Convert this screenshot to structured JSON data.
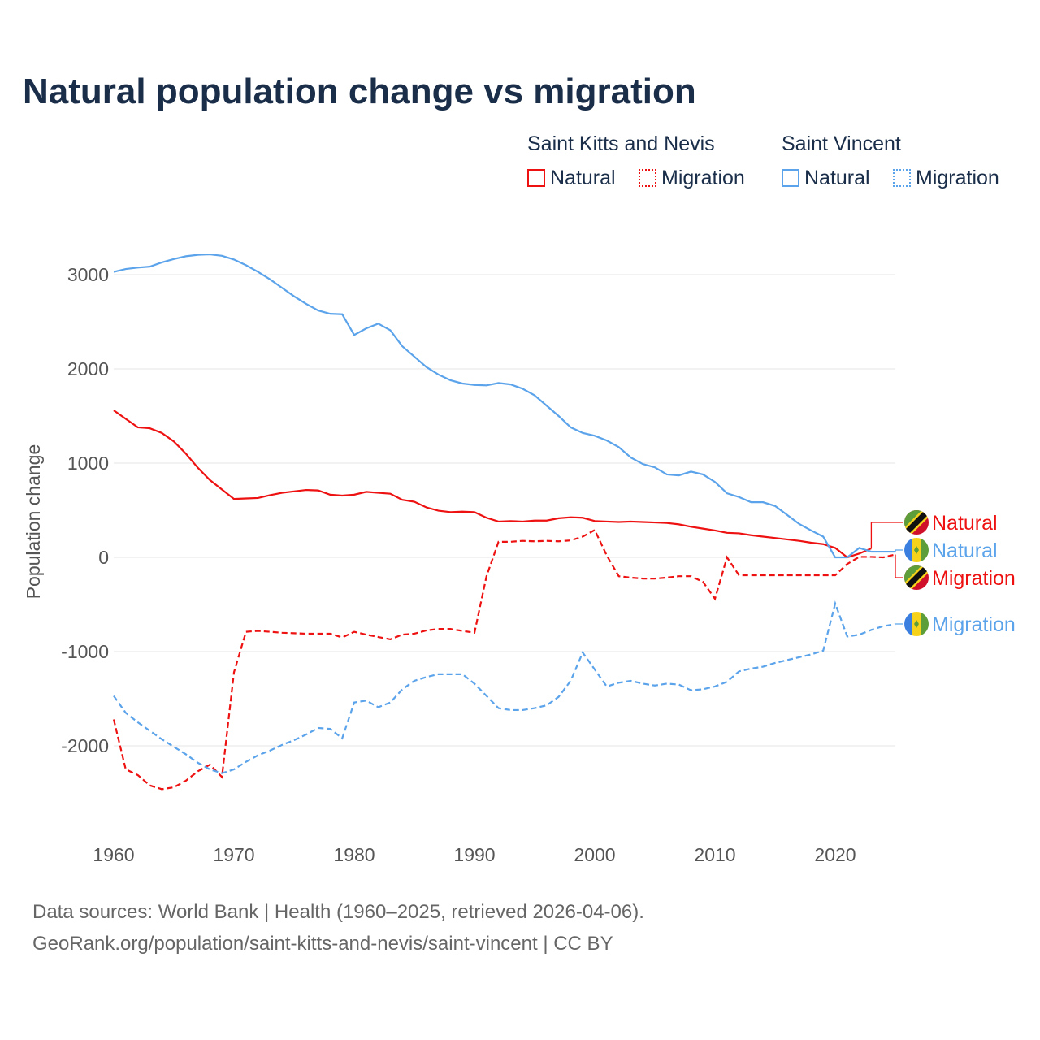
{
  "chart_data": {
    "type": "line",
    "title": "Natural population change vs migration",
    "xlabel": "",
    "ylabel": "Population change",
    "xlim": [
      1960,
      2025
    ],
    "ylim": [
      -2600,
      3300
    ],
    "xticks": [
      1960,
      1970,
      1980,
      1990,
      2000,
      2010,
      2020
    ],
    "yticks": [
      -2000,
      -1000,
      0,
      1000,
      2000,
      3000
    ],
    "grid": true,
    "legend": {
      "groups": [
        {
          "title": "Saint Kitts and Nevis",
          "items": [
            "Natural",
            "Migration"
          ]
        },
        {
          "title": "Saint Vincent",
          "items": [
            "Natural",
            "Migration"
          ]
        }
      ],
      "placement": "top-right"
    },
    "series": [
      {
        "name": "Saint Kitts and Nevis Natural",
        "label": "Natural",
        "color": "#ee1111",
        "dash": false,
        "start": 1960,
        "values": [
          1560,
          1470,
          1380,
          1370,
          1320,
          1230,
          1100,
          950,
          820,
          720,
          620,
          625,
          630,
          660,
          685,
          700,
          715,
          710,
          665,
          655,
          665,
          695,
          685,
          675,
          610,
          590,
          530,
          495,
          480,
          485,
          480,
          420,
          380,
          385,
          380,
          390,
          390,
          415,
          425,
          420,
          385,
          380,
          375,
          380,
          375,
          370,
          365,
          350,
          325,
          305,
          285,
          260,
          255,
          235,
          220,
          205,
          190,
          175,
          155,
          140,
          100,
          0,
          40,
          95
        ]
      },
      {
        "name": "Saint Kitts and Nevis Migration",
        "label": "Migration",
        "color": "#ee1111",
        "dash": true,
        "start": 1960,
        "values": [
          -1720,
          -2250,
          -2310,
          -2420,
          -2460,
          -2440,
          -2370,
          -2270,
          -2200,
          -2330,
          -1220,
          -790,
          -780,
          -790,
          -800,
          -805,
          -810,
          -810,
          -810,
          -850,
          -790,
          -820,
          -845,
          -870,
          -820,
          -810,
          -775,
          -760,
          -760,
          -780,
          -800,
          -200,
          165,
          165,
          175,
          170,
          175,
          170,
          180,
          220,
          290,
          20,
          -200,
          -215,
          -225,
          -225,
          -215,
          -200,
          -200,
          -260,
          -440,
          0,
          -190,
          -190,
          -190,
          -190,
          -190,
          -190,
          -190,
          -190,
          -190,
          -70,
          5,
          5,
          0,
          30
        ]
      },
      {
        "name": "Saint Vincent Natural",
        "label": "Natural",
        "color": "#5ba3ea",
        "dash": false,
        "start": 1960,
        "values": [
          3030,
          3060,
          3075,
          3085,
          3130,
          3165,
          3195,
          3210,
          3215,
          3200,
          3160,
          3100,
          3030,
          2950,
          2860,
          2770,
          2690,
          2620,
          2585,
          2580,
          2360,
          2430,
          2480,
          2410,
          2240,
          2130,
          2020,
          1940,
          1880,
          1845,
          1830,
          1825,
          1850,
          1835,
          1790,
          1720,
          1610,
          1500,
          1380,
          1320,
          1290,
          1240,
          1170,
          1060,
          990,
          955,
          880,
          870,
          910,
          880,
          800,
          680,
          640,
          585,
          585,
          545,
          450,
          355,
          285,
          220,
          0,
          0,
          100,
          60,
          60,
          60
        ]
      },
      {
        "name": "Saint Vincent Migration",
        "label": "Migration",
        "color": "#5ba3ea",
        "dash": true,
        "start": 1960,
        "values": [
          -1470,
          -1650,
          -1750,
          -1840,
          -1930,
          -2010,
          -2090,
          -2180,
          -2250,
          -2290,
          -2250,
          -2170,
          -2100,
          -2050,
          -1990,
          -1940,
          -1880,
          -1810,
          -1820,
          -1920,
          -1540,
          -1520,
          -1590,
          -1540,
          -1400,
          -1310,
          -1270,
          -1240,
          -1240,
          -1240,
          -1340,
          -1470,
          -1600,
          -1620,
          -1620,
          -1600,
          -1570,
          -1480,
          -1310,
          -1010,
          -1190,
          -1370,
          -1330,
          -1310,
          -1340,
          -1360,
          -1340,
          -1350,
          -1410,
          -1400,
          -1370,
          -1320,
          -1210,
          -1180,
          -1160,
          -1120,
          -1090,
          -1060,
          -1030,
          -990,
          -490,
          -840,
          -820,
          -770,
          -730,
          -710
        ]
      }
    ]
  },
  "source": {
    "line1": "Data sources: World Bank | Health (1960–2025, retrieved 2026-04-06).",
    "line2": "GeoRank.org/population/saint-kitts-and-nevis/saint-vincent | CC BY"
  }
}
